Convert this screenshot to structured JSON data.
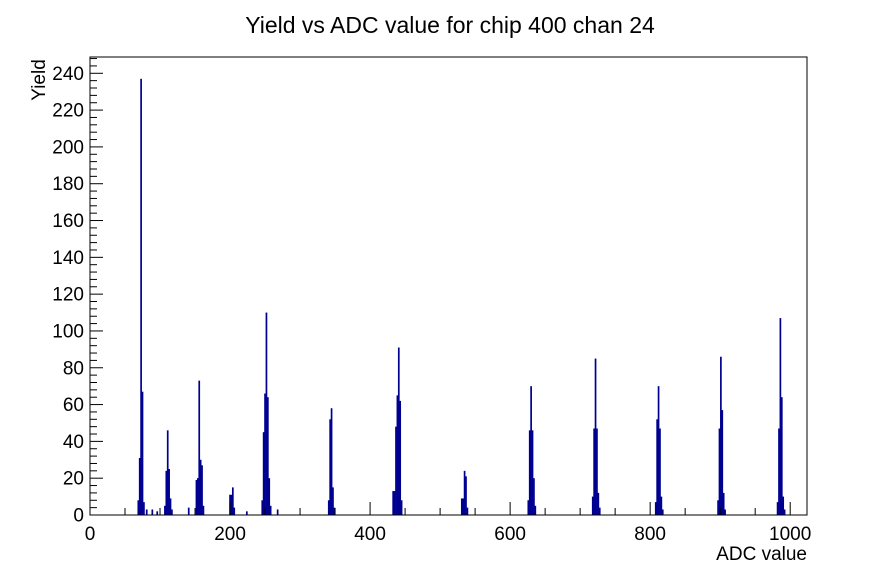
{
  "page": {
    "title": "Yield vs ADC value for chip 400 chan 24"
  },
  "chart_data": {
    "type": "bar",
    "subtype": "root-histogram-spikes",
    "title": "Yield vs ADC value for chip 400 chan 24",
    "xlabel": "ADC value",
    "ylabel": "Yield",
    "xlim": [
      0,
      1024
    ],
    "ylim": [
      0,
      248.85
    ],
    "x_major_ticks": [
      0,
      200,
      400,
      600,
      800,
      1000
    ],
    "x_minor_step": 50,
    "y_major_ticks": [
      0,
      20,
      40,
      60,
      80,
      100,
      120,
      140,
      160,
      180,
      200,
      220,
      240
    ],
    "y_minor_step": 4,
    "grid": false,
    "legend": false,
    "background": "#ffffff",
    "axis_color": "#000000",
    "line_color": "#000090",
    "bin_width_adc": 2,
    "bins": [
      [
        69,
        8
      ],
      [
        71,
        31
      ],
      [
        73,
        237
      ],
      [
        75,
        67
      ],
      [
        77,
        7
      ],
      [
        81,
        3
      ],
      [
        89,
        3
      ],
      [
        96,
        2
      ],
      [
        107,
        5
      ],
      [
        109,
        24
      ],
      [
        111,
        46
      ],
      [
        113,
        25
      ],
      [
        115,
        9
      ],
      [
        117,
        3
      ],
      [
        141,
        4
      ],
      [
        152,
        19
      ],
      [
        154,
        20
      ],
      [
        156,
        73
      ],
      [
        158,
        30
      ],
      [
        160,
        27
      ],
      [
        162,
        5
      ],
      [
        200,
        11
      ],
      [
        202,
        11
      ],
      [
        204,
        15
      ],
      [
        206,
        4
      ],
      [
        224,
        2
      ],
      [
        246,
        8
      ],
      [
        248,
        45
      ],
      [
        250,
        66
      ],
      [
        252,
        110
      ],
      [
        254,
        64
      ],
      [
        256,
        20
      ],
      [
        258,
        5
      ],
      [
        268,
        3
      ],
      [
        341,
        8
      ],
      [
        343,
        52
      ],
      [
        345,
        58
      ],
      [
        347,
        15
      ],
      [
        349,
        4
      ],
      [
        433,
        13
      ],
      [
        435,
        13
      ],
      [
        437,
        48
      ],
      [
        439,
        65
      ],
      [
        441,
        91
      ],
      [
        443,
        62
      ],
      [
        445,
        8
      ],
      [
        531,
        9
      ],
      [
        533,
        9
      ],
      [
        535,
        24
      ],
      [
        537,
        21
      ],
      [
        539,
        4
      ],
      [
        626,
        8
      ],
      [
        628,
        46
      ],
      [
        630,
        70
      ],
      [
        632,
        46
      ],
      [
        634,
        20
      ],
      [
        636,
        5
      ],
      [
        718,
        10
      ],
      [
        720,
        47
      ],
      [
        722,
        85
      ],
      [
        724,
        47
      ],
      [
        726,
        12
      ],
      [
        728,
        4
      ],
      [
        808,
        7
      ],
      [
        810,
        52
      ],
      [
        812,
        70
      ],
      [
        814,
        47
      ],
      [
        816,
        10
      ],
      [
        818,
        3
      ],
      [
        897,
        8
      ],
      [
        899,
        47
      ],
      [
        901,
        86
      ],
      [
        903,
        57
      ],
      [
        905,
        12
      ],
      [
        907,
        3
      ],
      [
        982,
        7
      ],
      [
        984,
        47
      ],
      [
        986,
        107
      ],
      [
        988,
        64
      ],
      [
        990,
        10
      ],
      [
        992,
        3
      ]
    ],
    "peaks": [
      {
        "adc": 73,
        "yield": 237
      },
      {
        "adc": 111,
        "yield": 46
      },
      {
        "adc": 156,
        "yield": 73
      },
      {
        "adc": 204,
        "yield": 15
      },
      {
        "adc": 252,
        "yield": 110
      },
      {
        "adc": 345,
        "yield": 58
      },
      {
        "adc": 441,
        "yield": 91
      },
      {
        "adc": 535,
        "yield": 24
      },
      {
        "adc": 630,
        "yield": 70
      },
      {
        "adc": 722,
        "yield": 85
      },
      {
        "adc": 812,
        "yield": 70
      },
      {
        "adc": 901,
        "yield": 86
      },
      {
        "adc": 986,
        "yield": 107
      }
    ]
  }
}
